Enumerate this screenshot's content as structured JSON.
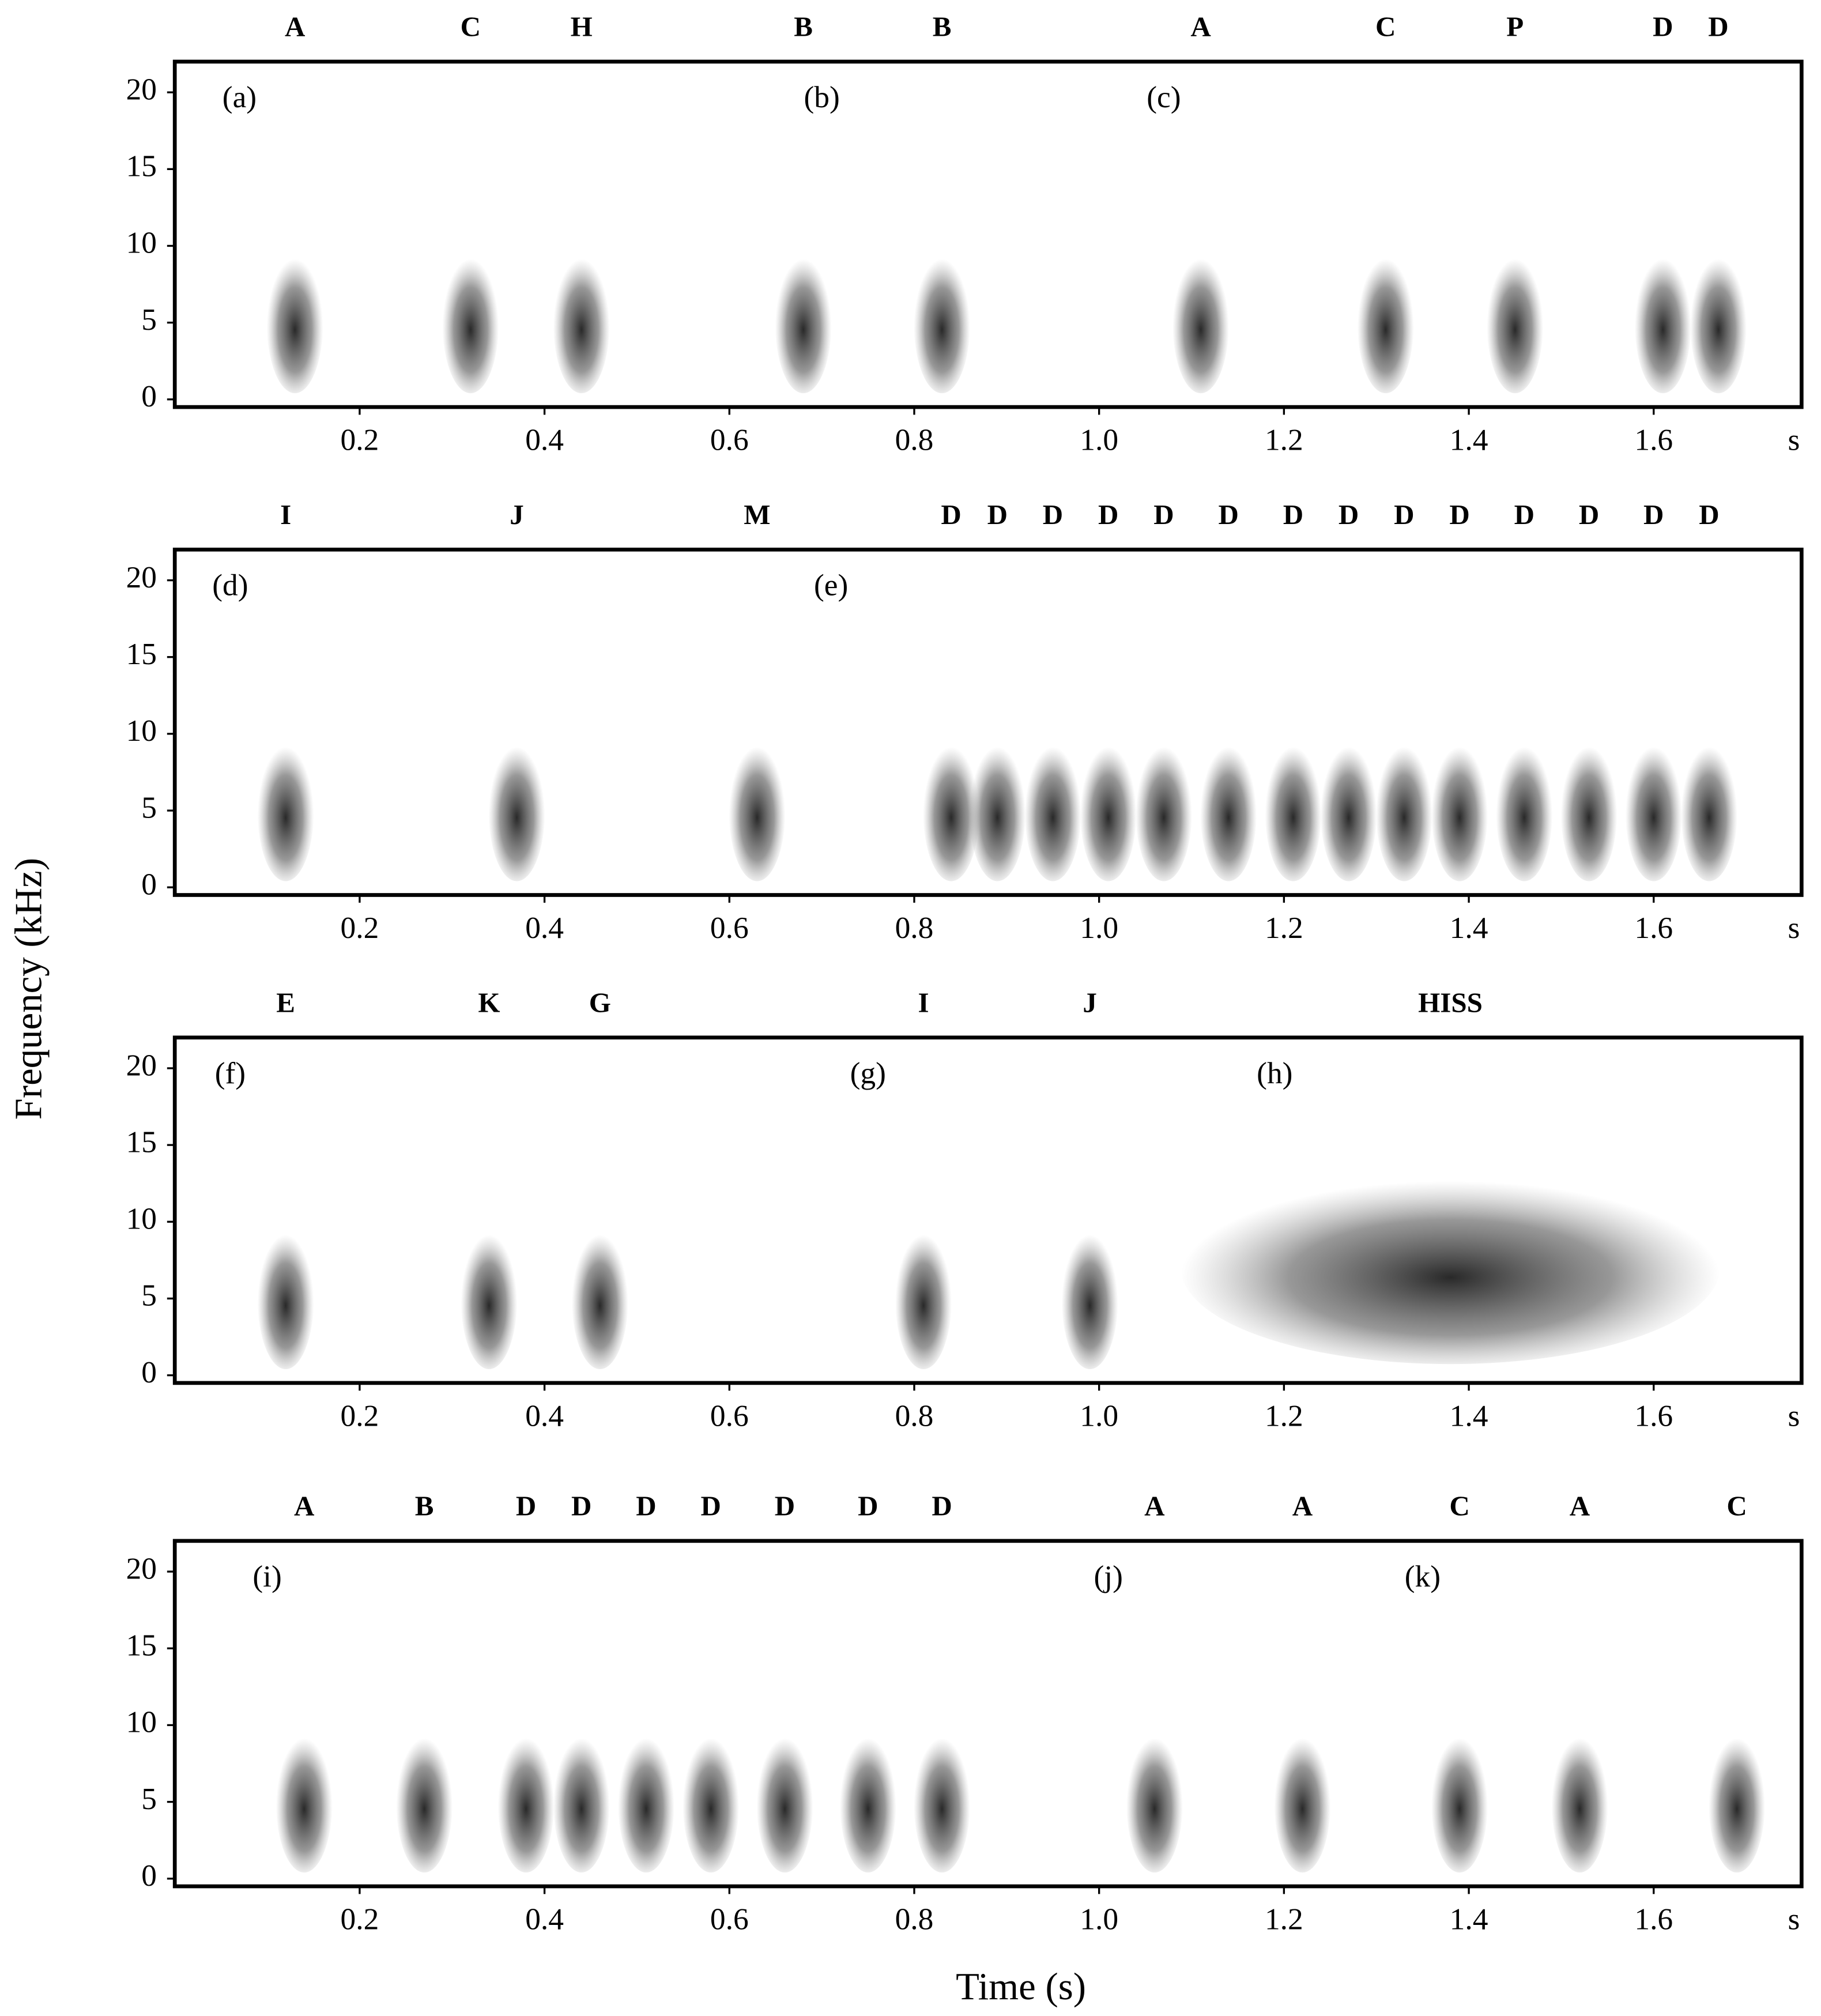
{
  "figure": {
    "y_label": "Frequency (kHz)",
    "x_label": "Time (s)"
  },
  "chart_data": [
    {
      "type": "spectrogram",
      "x_unit": "s",
      "xlim": [
        0,
        1.76
      ],
      "ylim": [
        -0.5,
        22
      ],
      "xticks": [
        0.2,
        0.4,
        0.6,
        0.8,
        {
          "value": 1,
          "label": "1.0"
        },
        1.2,
        1.4,
        1.6
      ],
      "yticks": [
        0,
        5,
        10,
        15,
        20
      ],
      "panels": [
        {
          "label": "(a)",
          "time": 0.07
        },
        {
          "label": "(b)",
          "time": 0.7
        },
        {
          "label": "(c)",
          "time": 1.07
        }
      ],
      "syllables": [
        {
          "label": "A",
          "time": 0.13
        },
        {
          "label": "C",
          "time": 0.32
        },
        {
          "label": "H",
          "time": 0.44
        },
        {
          "label": "B",
          "time": 0.68
        },
        {
          "label": "B",
          "time": 0.83
        },
        {
          "label": "A",
          "time": 1.11
        },
        {
          "label": "C",
          "time": 1.31
        },
        {
          "label": "P",
          "time": 1.45
        },
        {
          "label": "D",
          "time": 1.61
        },
        {
          "label": "D",
          "time": 1.67
        }
      ]
    },
    {
      "type": "spectrogram",
      "x_unit": "s",
      "xlim": [
        0,
        1.76
      ],
      "ylim": [
        -0.5,
        22
      ],
      "xticks": [
        0.2,
        0.4,
        0.6,
        0.8,
        {
          "value": 1,
          "label": "1.0"
        },
        1.2,
        1.4,
        1.6
      ],
      "yticks": [
        0,
        5,
        10,
        15,
        20
      ],
      "panels": [
        {
          "label": "(d)",
          "time": 0.06
        },
        {
          "label": "(e)",
          "time": 0.71
        }
      ],
      "syllables": [
        {
          "label": "I",
          "time": 0.12
        },
        {
          "label": "J",
          "time": 0.37
        },
        {
          "label": "M",
          "time": 0.63
        },
        {
          "label": "D",
          "time": 0.84
        },
        {
          "label": "D",
          "time": 0.89
        },
        {
          "label": "D",
          "time": 0.95
        },
        {
          "label": "D",
          "time": 1.01
        },
        {
          "label": "D",
          "time": 1.07
        },
        {
          "label": "D",
          "time": 1.14
        },
        {
          "label": "D",
          "time": 1.21
        },
        {
          "label": "D",
          "time": 1.27
        },
        {
          "label": "D",
          "time": 1.33
        },
        {
          "label": "D",
          "time": 1.39
        },
        {
          "label": "D",
          "time": 1.46
        },
        {
          "label": "D",
          "time": 1.53
        },
        {
          "label": "D",
          "time": 1.6
        },
        {
          "label": "D",
          "time": 1.66
        }
      ]
    },
    {
      "type": "spectrogram",
      "x_unit": "s",
      "xlim": [
        0,
        1.76
      ],
      "ylim": [
        -0.5,
        22
      ],
      "xticks": [
        0.2,
        0.4,
        0.6,
        0.8,
        {
          "value": 1,
          "label": "1.0"
        },
        1.2,
        1.4,
        1.6
      ],
      "yticks": [
        0,
        5,
        10,
        15,
        20
      ],
      "panels": [
        {
          "label": "(f)",
          "time": 0.06
        },
        {
          "label": "(g)",
          "time": 0.75
        },
        {
          "label": "(h)",
          "time": 1.19
        }
      ],
      "syllables": [
        {
          "label": "E",
          "time": 0.12
        },
        {
          "label": "K",
          "time": 0.34
        },
        {
          "label": "G",
          "time": 0.46
        },
        {
          "label": "I",
          "time": 0.81
        },
        {
          "label": "J",
          "time": 0.99
        },
        {
          "label": "HISS",
          "time": 1.38
        }
      ]
    },
    {
      "type": "spectrogram",
      "x_unit": "s",
      "xlim": [
        0,
        1.76
      ],
      "ylim": [
        -0.5,
        22
      ],
      "xticks": [
        0.2,
        0.4,
        0.6,
        0.8,
        {
          "value": 1,
          "label": "1.0"
        },
        1.2,
        1.4,
        1.6
      ],
      "yticks": [
        0,
        5,
        10,
        15,
        20
      ],
      "panels": [
        {
          "label": "(i)",
          "time": 0.1
        },
        {
          "label": "(j)",
          "time": 1.01
        },
        {
          "label": "(k)",
          "time": 1.35
        }
      ],
      "syllables": [
        {
          "label": "A",
          "time": 0.14
        },
        {
          "label": "B",
          "time": 0.27
        },
        {
          "label": "D",
          "time": 0.38
        },
        {
          "label": "D",
          "time": 0.44
        },
        {
          "label": "D",
          "time": 0.51
        },
        {
          "label": "D",
          "time": 0.58
        },
        {
          "label": "D",
          "time": 0.66
        },
        {
          "label": "D",
          "time": 0.75
        },
        {
          "label": "D",
          "time": 0.83
        },
        {
          "label": "A",
          "time": 1.06
        },
        {
          "label": "A",
          "time": 1.22
        },
        {
          "label": "C",
          "time": 1.39
        },
        {
          "label": "A",
          "time": 1.52
        },
        {
          "label": "C",
          "time": 1.69
        }
      ]
    }
  ]
}
